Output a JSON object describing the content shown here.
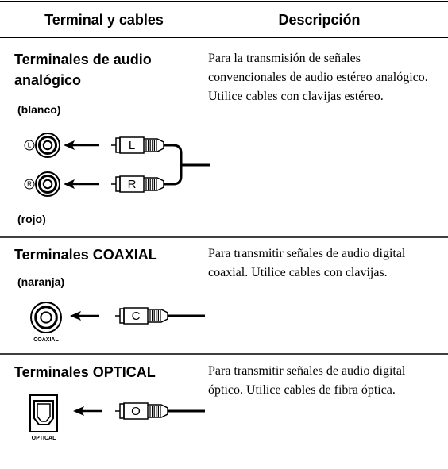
{
  "header": {
    "col1": "Terminal y cables",
    "col2": "Descripción"
  },
  "rows": [
    {
      "title": "Terminales de audio analógico",
      "labels": [
        "(blanco)",
        "(rojo)"
      ],
      "jack_icons": [
        "L",
        "R"
      ],
      "plugs": [
        "L",
        "R"
      ],
      "description": "Para la transmisión de señales convencionales de audio estéreo analógico. Utilice cables con clavijas estéreo."
    },
    {
      "title": "Terminales COAXIAL",
      "labels": [
        "(naranja)"
      ],
      "jack_caption": "COAXIAL",
      "plugs": [
        "C"
      ],
      "description": "Para transmitir señales de audio digital coaxial. Utilice cables con clavijas."
    },
    {
      "title": "Terminales OPTICAL",
      "jack_caption": "OPTICAL",
      "plugs": [
        "O"
      ],
      "description": "Para transmitir señales de audio digital óptico. Utilice cables de fibra óptica."
    }
  ]
}
